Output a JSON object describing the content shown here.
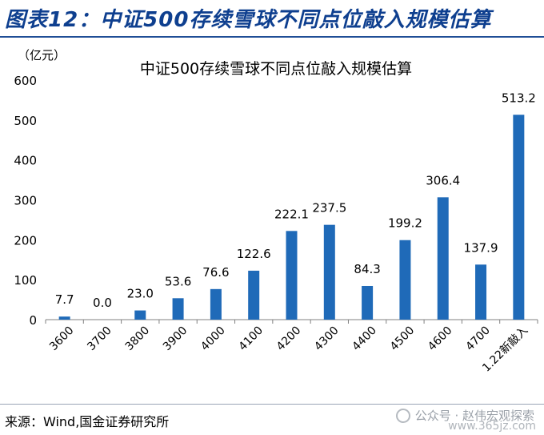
{
  "figure_title": "图表12：中证500存续雪球不同点位敲入规模估算",
  "source": "来源：Wind,国金证券研究所",
  "watermark": "公众号 · 赵伟宏观探索",
  "watermark_site": "www.365jz.com",
  "colors": {
    "bar": "#1f6ab8",
    "title_blue": "#0e3f8f"
  },
  "chart_data": {
    "type": "bar",
    "title": "中证500存续雪球不同点位敲入规模估算",
    "unit_label": "（亿元）",
    "categories": [
      "3600",
      "3700",
      "3800",
      "3900",
      "4000",
      "4100",
      "4200",
      "4300",
      "4400",
      "4500",
      "4600",
      "4700",
      "1.22新敲入"
    ],
    "values": [
      7.7,
      0.0,
      23.0,
      53.6,
      76.6,
      122.6,
      222.1,
      237.5,
      84.3,
      199.2,
      306.4,
      137.9,
      513.2
    ],
    "data_labels": [
      "7.7",
      "0.0",
      "23.0",
      "53.6",
      "76.6",
      "122.6",
      "222.1",
      "237.5",
      "84.3",
      "199.2",
      "306.4",
      "137.9",
      "513.2"
    ],
    "ylim": [
      0,
      600
    ],
    "yticks": [
      "0",
      "100",
      "200",
      "300",
      "400",
      "500",
      "600"
    ],
    "grid": false
  }
}
